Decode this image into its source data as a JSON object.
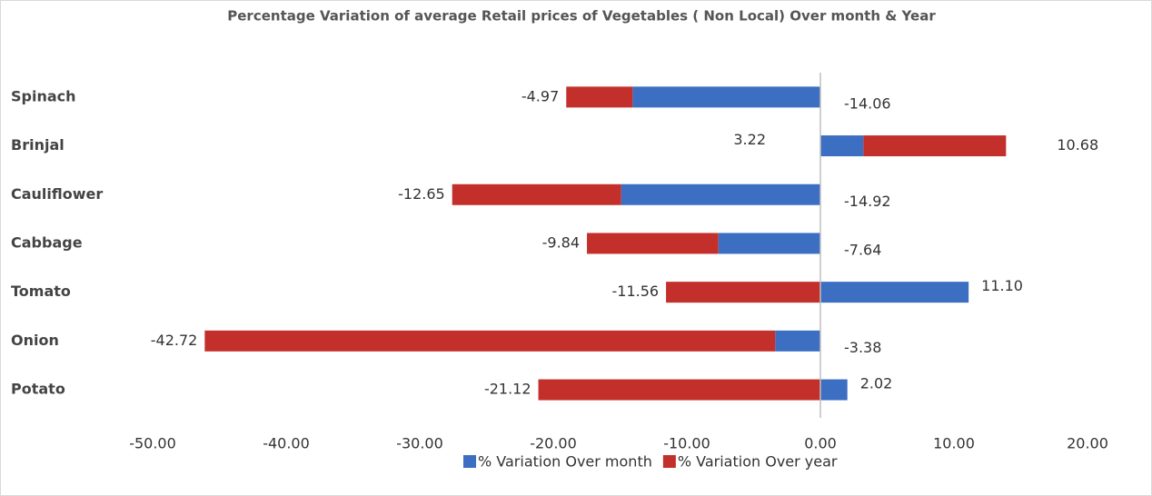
{
  "chart_data": {
    "type": "stacked-barh",
    "title": "Percentage Variation of  average Retail prices of Vegetables ( Non Local) Over month & Year",
    "categories": [
      "Spinach",
      "Brinjal",
      "Cauliflower",
      "Cabbage",
      "Tomato",
      "Onion",
      "Potato"
    ],
    "series": [
      {
        "name": "% Variation Over month",
        "color": "#3c6ec2",
        "values": [
          -14.06,
          3.22,
          -14.92,
          -7.64,
          11.1,
          -3.38,
          2.02
        ],
        "value_labels": [
          "-14.06",
          "3.22",
          "-14.92",
          "-7.64",
          "11.10",
          "-3.38",
          "2.02"
        ]
      },
      {
        "name": "% Variation Over year",
        "color": "#c3302c",
        "values": [
          -4.97,
          10.68,
          -12.65,
          -9.84,
          -11.56,
          -42.72,
          -21.12
        ],
        "value_labels": [
          "-4.97",
          "10.68",
          "-12.65",
          "-9.84",
          "-11.56",
          "-42.72",
          "-21.12"
        ]
      }
    ],
    "xlim": [
      -50,
      20
    ],
    "xticks": [
      {
        "value": -50,
        "label": "-50.00"
      },
      {
        "value": -40,
        "label": "-40.00"
      },
      {
        "value": -30,
        "label": "-30.00"
      },
      {
        "value": -20,
        "label": "-20.00"
      },
      {
        "value": -10,
        "label": "-10.00"
      },
      {
        "value": 0,
        "label": "0.00"
      },
      {
        "value": 10,
        "label": "10.00"
      },
      {
        "value": 20,
        "label": "20.00"
      }
    ],
    "legend": "bottom"
  }
}
